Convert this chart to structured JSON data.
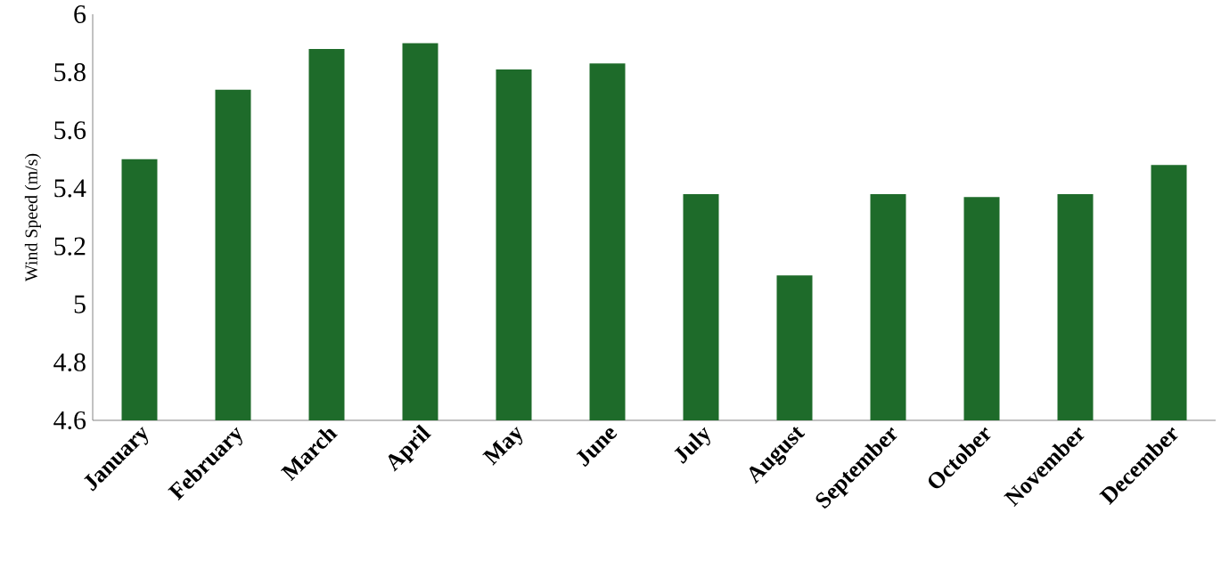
{
  "chart_data": {
    "type": "bar",
    "ylabel": "Wind Speed (m/s)",
    "categories": [
      "January",
      "February",
      "March",
      "April",
      "May",
      "June",
      "July",
      "August",
      "September",
      "October",
      "November",
      "December"
    ],
    "values": [
      5.5,
      5.74,
      5.88,
      5.9,
      5.81,
      5.83,
      5.38,
      5.1,
      5.38,
      5.37,
      5.38,
      5.48
    ],
    "color": "#1e6b2a",
    "ylim": [
      4.6,
      6
    ],
    "yticks": [
      4.6,
      4.8,
      5,
      5.2,
      5.4,
      5.6,
      5.8,
      6
    ],
    "grid": false
  }
}
